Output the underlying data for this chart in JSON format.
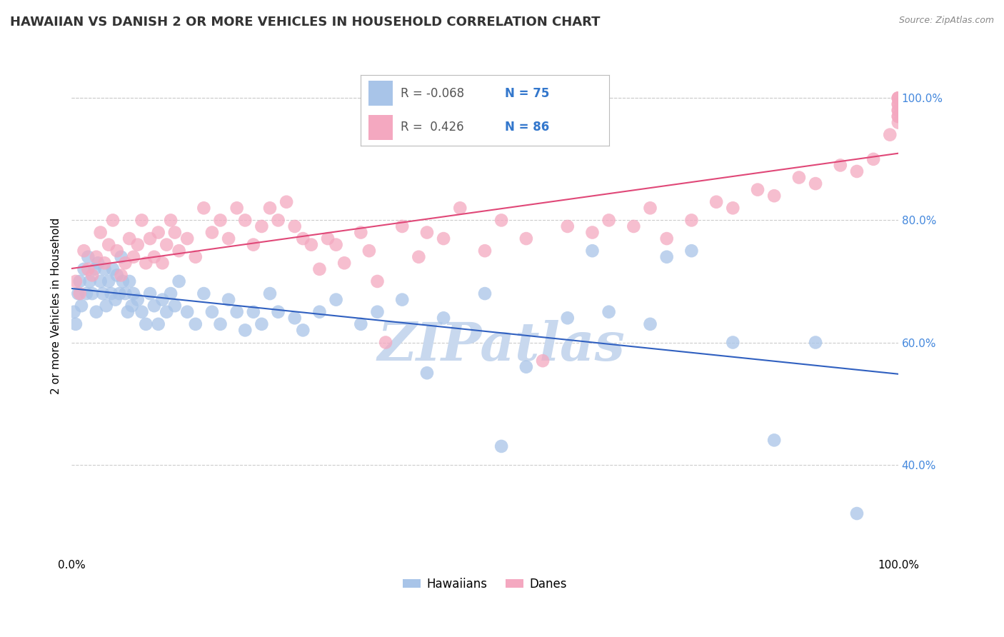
{
  "title": "HAWAIIAN VS DANISH 2 OR MORE VEHICLES IN HOUSEHOLD CORRELATION CHART",
  "source": "Source: ZipAtlas.com",
  "ylabel": "2 or more Vehicles in Household",
  "watermark": "ZIPatlas",
  "hawaiians_R": "-0.068",
  "hawaiians_N": "75",
  "danes_R": "0.426",
  "danes_N": "86",
  "hawaiians_color": "#A8C4E8",
  "danes_color": "#F4A8C0",
  "hawaiians_line_color": "#3060C0",
  "danes_line_color": "#E04878",
  "hawaiians_x": [
    0.3,
    0.5,
    0.8,
    1.0,
    1.2,
    1.5,
    1.8,
    2.0,
    2.2,
    2.5,
    2.8,
    3.0,
    3.2,
    3.5,
    3.8,
    4.0,
    4.2,
    4.5,
    4.8,
    5.0,
    5.3,
    5.5,
    5.8,
    6.0,
    6.2,
    6.5,
    6.8,
    7.0,
    7.3,
    7.5,
    8.0,
    8.5,
    9.0,
    9.5,
    10.0,
    10.5,
    11.0,
    11.5,
    12.0,
    12.5,
    13.0,
    14.0,
    15.0,
    16.0,
    17.0,
    18.0,
    19.0,
    20.0,
    21.0,
    22.0,
    23.0,
    24.0,
    25.0,
    27.0,
    28.0,
    30.0,
    32.0,
    35.0,
    37.0,
    40.0,
    43.0,
    45.0,
    50.0,
    52.0,
    55.0,
    60.0,
    63.0,
    65.0,
    70.0,
    72.0,
    75.0,
    80.0,
    85.0,
    90.0,
    95.0
  ],
  "hawaiians_y": [
    65.0,
    63.0,
    68.0,
    70.0,
    66.0,
    72.0,
    68.0,
    74.0,
    70.0,
    68.0,
    72.0,
    65.0,
    73.0,
    70.0,
    68.0,
    72.0,
    66.0,
    70.0,
    68.0,
    72.0,
    67.0,
    71.0,
    68.0,
    74.0,
    70.0,
    68.0,
    65.0,
    70.0,
    66.0,
    68.0,
    67.0,
    65.0,
    63.0,
    68.0,
    66.0,
    63.0,
    67.0,
    65.0,
    68.0,
    66.0,
    70.0,
    65.0,
    63.0,
    68.0,
    65.0,
    63.0,
    67.0,
    65.0,
    62.0,
    65.0,
    63.0,
    68.0,
    65.0,
    64.0,
    62.0,
    65.0,
    67.0,
    63.0,
    65.0,
    67.0,
    55.0,
    64.0,
    68.0,
    43.0,
    56.0,
    64.0,
    75.0,
    65.0,
    63.0,
    74.0,
    75.0,
    60.0,
    44.0,
    60.0,
    32.0
  ],
  "danes_x": [
    0.5,
    1.0,
    1.5,
    2.0,
    2.5,
    3.0,
    3.5,
    4.0,
    4.5,
    5.0,
    5.5,
    6.0,
    6.5,
    7.0,
    7.5,
    8.0,
    8.5,
    9.0,
    9.5,
    10.0,
    10.5,
    11.0,
    11.5,
    12.0,
    12.5,
    13.0,
    14.0,
    15.0,
    16.0,
    17.0,
    18.0,
    19.0,
    20.0,
    21.0,
    22.0,
    23.0,
    24.0,
    25.0,
    26.0,
    27.0,
    28.0,
    29.0,
    30.0,
    31.0,
    32.0,
    33.0,
    35.0,
    36.0,
    37.0,
    38.0,
    40.0,
    42.0,
    43.0,
    45.0,
    47.0,
    50.0,
    52.0,
    55.0,
    57.0,
    60.0,
    63.0,
    65.0,
    68.0,
    70.0,
    72.0,
    75.0,
    78.0,
    80.0,
    83.0,
    85.0,
    88.0,
    90.0,
    93.0,
    95.0,
    97.0,
    99.0,
    100.0,
    100.0,
    100.0,
    100.0,
    100.0,
    100.0,
    100.0,
    100.0,
    100.0,
    100.0
  ],
  "danes_y": [
    70.0,
    68.0,
    75.0,
    72.0,
    71.0,
    74.0,
    78.0,
    73.0,
    76.0,
    80.0,
    75.0,
    71.0,
    73.0,
    77.0,
    74.0,
    76.0,
    80.0,
    73.0,
    77.0,
    74.0,
    78.0,
    73.0,
    76.0,
    80.0,
    78.0,
    75.0,
    77.0,
    74.0,
    82.0,
    78.0,
    80.0,
    77.0,
    82.0,
    80.0,
    76.0,
    79.0,
    82.0,
    80.0,
    83.0,
    79.0,
    77.0,
    76.0,
    72.0,
    77.0,
    76.0,
    73.0,
    78.0,
    75.0,
    70.0,
    60.0,
    79.0,
    74.0,
    78.0,
    77.0,
    82.0,
    75.0,
    80.0,
    77.0,
    57.0,
    79.0,
    78.0,
    80.0,
    79.0,
    82.0,
    77.0,
    80.0,
    83.0,
    82.0,
    85.0,
    84.0,
    87.0,
    86.0,
    89.0,
    88.0,
    90.0,
    94.0,
    96.0,
    98.0,
    97.0,
    99.0,
    100.0,
    98.0,
    99.0,
    97.0,
    100.0,
    100.0
  ],
  "xlim": [
    0,
    100
  ],
  "ylim": [
    25,
    107
  ],
  "yticks": [
    40,
    60,
    80,
    100
  ],
  "grid_color": "#CCCCCC",
  "background_color": "#FFFFFF",
  "watermark_color": "#C8D8EE",
  "title_fontsize": 13,
  "axis_label_fontsize": 11,
  "tick_fontsize": 11
}
